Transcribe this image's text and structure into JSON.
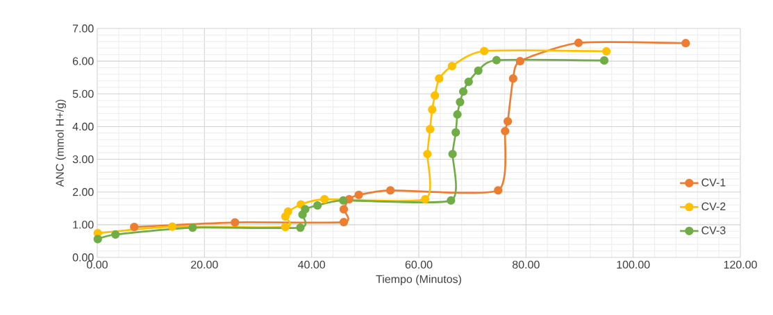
{
  "chart_data": {
    "type": "line",
    "xlabel": "Tiempo (Minutos)",
    "ylabel": "ANC (mmol H+/g)",
    "xlim": [
      0,
      120
    ],
    "ylim": [
      0,
      7
    ],
    "xticks": [
      {
        "value": 0,
        "label": "0.00"
      },
      {
        "value": 20,
        "label": "20.00"
      },
      {
        "value": 40,
        "label": "40.00"
      },
      {
        "value": 60,
        "label": "60.00"
      },
      {
        "value": 80,
        "label": "80.00"
      },
      {
        "value": 100,
        "label": "100.00"
      },
      {
        "value": 120,
        "label": "120.00"
      }
    ],
    "yticks": [
      {
        "value": 0,
        "label": "0.00"
      },
      {
        "value": 1,
        "label": "1.00"
      },
      {
        "value": 2,
        "label": "2.00"
      },
      {
        "value": 3,
        "label": "3.00"
      },
      {
        "value": 4,
        "label": "4.00"
      },
      {
        "value": 5,
        "label": "5.00"
      },
      {
        "value": 6,
        "label": "6.00"
      },
      {
        "value": 7,
        "label": "7.00"
      }
    ],
    "grid": true,
    "legend": "right",
    "marker": "circle",
    "line_style": "solid",
    "series": [
      {
        "name": "CV-1",
        "color": "#ed7d31",
        "x": [
          6.9,
          25.7,
          46,
          46,
          47,
          48.8,
          54.7,
          74.8,
          76.1,
          76.6,
          77.6,
          78.9,
          89.8,
          109.8
        ],
        "values": [
          0.93,
          1.07,
          1.08,
          1.47,
          1.78,
          1.91,
          2.05,
          2.05,
          3.86,
          4.16,
          5.47,
          6.0,
          6.56,
          6.55
        ]
      },
      {
        "name": "CV-2",
        "color": "#ffc000",
        "x": [
          0.1,
          14,
          35.1,
          35.1,
          35.6,
          38,
          42.4,
          61.2,
          61.6,
          62.1,
          62.5,
          63,
          63.8,
          66.2,
          72.2,
          95
        ],
        "values": [
          0.74,
          0.94,
          0.93,
          1.25,
          1.4,
          1.62,
          1.78,
          1.78,
          3.16,
          3.92,
          4.52,
          4.95,
          5.47,
          5.85,
          6.31,
          6.3
        ]
      },
      {
        "name": "CV-3",
        "color": "#70ad47",
        "x": [
          0.1,
          3.4,
          17.8,
          37.9,
          38.3,
          38.8,
          41.1,
          45.9,
          66,
          66.3,
          66.9,
          67.2,
          67.7,
          68.3,
          69.3,
          71.1,
          74.5,
          94.6
        ],
        "values": [
          0.56,
          0.7,
          0.91,
          0.91,
          1.31,
          1.47,
          1.59,
          1.74,
          1.74,
          3.16,
          3.82,
          4.37,
          4.75,
          5.07,
          5.37,
          5.71,
          6.03,
          6.02
        ]
      }
    ]
  }
}
